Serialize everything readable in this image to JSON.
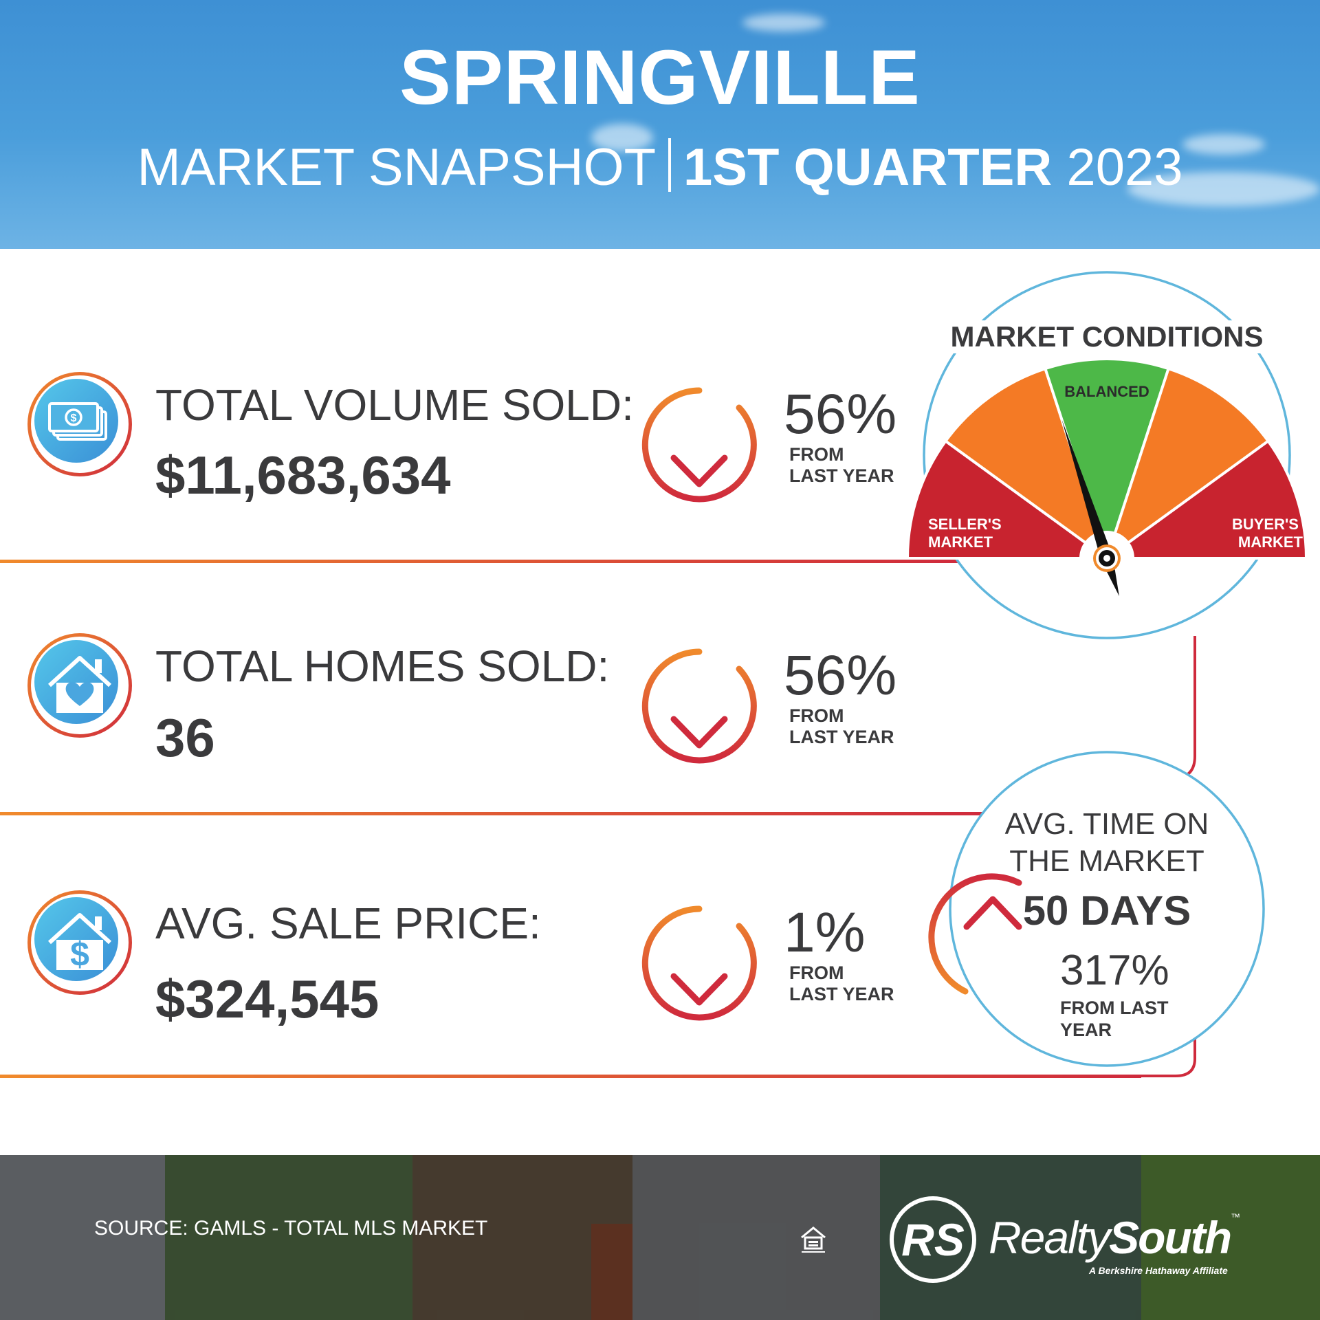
{
  "header": {
    "title": "SPRINGVILLE",
    "subtitle_left": "MARKET SNAPSHOT",
    "subtitle_bold": "1ST QUARTER",
    "subtitle_year": "2023"
  },
  "stats": [
    {
      "icon": "money-icon",
      "label": "TOTAL VOLUME SOLD:",
      "value": "$11,683,634",
      "direction": "down",
      "change": "56%",
      "from_line1": "FROM",
      "from_line2": "LAST YEAR"
    },
    {
      "icon": "house-heart-icon",
      "label": "TOTAL HOMES SOLD:",
      "value": "36",
      "direction": "down",
      "change": "56%",
      "from_line1": "FROM",
      "from_line2": "LAST YEAR"
    },
    {
      "icon": "house-dollar-icon",
      "label": "AVG. SALE PRICE:",
      "value": "$324,545",
      "direction": "down",
      "change": "1%",
      "from_line1": "FROM",
      "from_line2": "LAST YEAR"
    }
  ],
  "market_conditions": {
    "title": "MARKET CONDITIONS",
    "zones": {
      "sellers_line1": "SELLER'S",
      "sellers_line2": "MARKET",
      "balanced": "BALANCED",
      "buyers_line1": "BUYER'S",
      "buyers_line2": "MARKET"
    },
    "needle_level": 0.4
  },
  "time_on_market": {
    "line1": "AVG. TIME ON",
    "line2": "THE MARKET",
    "value": "50 DAYS",
    "direction": "up",
    "change": "317%",
    "from_line1": "FROM LAST",
    "from_line2": "YEAR"
  },
  "footer": {
    "source": "SOURCE: GAMLS - TOTAL MLS MARKET",
    "eho_icon": "equal-housing-opportunity-icon",
    "logo_mark": "RS",
    "brand_light": "Realty",
    "brand_bold": "South",
    "brand_tm": "™",
    "tagline": "A Berkshire Hathaway Affiliate"
  },
  "colors": {
    "sky": "#4b9edb",
    "orange": "#f08a2c",
    "red": "#cf2a3c",
    "green": "#4db848",
    "gauge_orange": "#f47a25",
    "gauge_red": "#c8232f",
    "ring_blue": "#5fb6dc",
    "text": "#3a3a3c"
  }
}
